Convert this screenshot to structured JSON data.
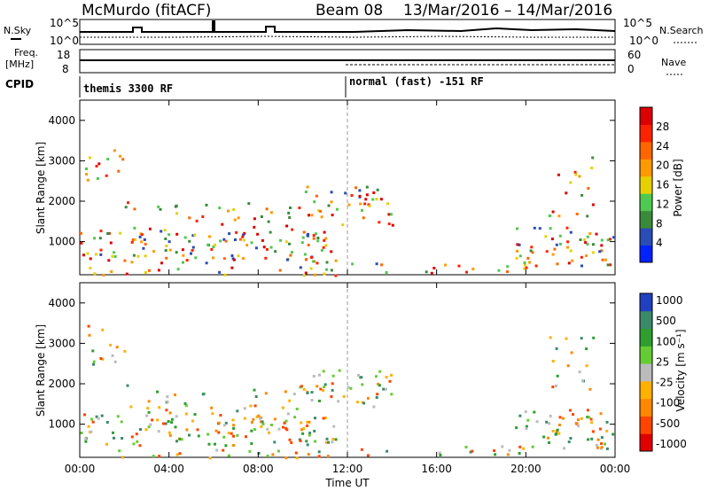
{
  "header": {
    "site": "McMurdo (fitACF)",
    "beam": "Beam 08",
    "date_range": "13/Mar/2016 – 14/Mar/2016"
  },
  "status_panels": {
    "nsky_label": "N.Sky",
    "nsearch_label": "N.Search",
    "noise_ticks": [
      "10^5",
      "10^0"
    ],
    "freq_label_line1": "Freq.",
    "freq_label_line2": "[MHz]",
    "freq_ticks": [
      "18",
      "8"
    ],
    "nave_label": "Nave",
    "nave_ticks": [
      "60",
      "0"
    ],
    "cpid_label": "CPID",
    "cpid_1": "themis 3300 RF",
    "cpid_2": "normal (fast) -151 RF",
    "cpid_change_time": 12.0
  },
  "chart_data": [
    {
      "type": "heatmap",
      "name": "power",
      "ylabel": "Slant Range [km]",
      "y_ticks": [
        "1000",
        "2000",
        "3000",
        "4000"
      ],
      "ylim": [
        180,
        4500
      ],
      "colorbar_label": "Power [dB]",
      "colorbar_ticks": [
        "4",
        "8",
        "12",
        "16",
        "20",
        "24",
        "28"
      ],
      "colorbar_colors": [
        "#0022ff",
        "#2a4db5",
        "#3b8a3b",
        "#4fc94f",
        "#e6d000",
        "#ff9900",
        "#ff6600",
        "#ff2200",
        "#dd0000"
      ]
    },
    {
      "type": "heatmap",
      "name": "velocity",
      "ylabel": "Slant Range [km]",
      "y_ticks": [
        "1000",
        "2000",
        "3000",
        "4000"
      ],
      "ylim": [
        180,
        4500
      ],
      "xlabel": "Time UT",
      "x_ticks": [
        "00:00",
        "04:00",
        "08:00",
        "12:00",
        "16:00",
        "20:00",
        "00:00"
      ],
      "xlim": [
        0,
        24
      ],
      "colorbar_label": "Velocity [m s⁻¹]",
      "colorbar_ticks": [
        "1000",
        "500",
        "100",
        "25",
        "-25",
        "-100",
        "-500",
        "-1000"
      ],
      "colorbar_colors": [
        "#2040c0",
        "#3a8a6a",
        "#2e9e2e",
        "#66cc33",
        "#bbbbbb",
        "#ffb000",
        "#ff8800",
        "#ff4400",
        "#e00000"
      ]
    }
  ]
}
